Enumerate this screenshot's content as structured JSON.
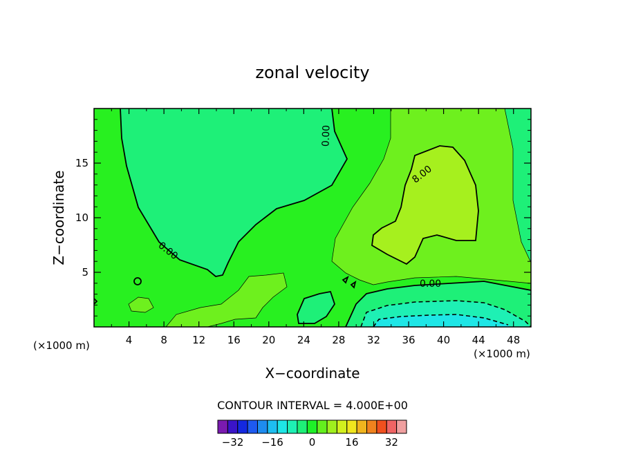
{
  "chart_data": {
    "type": "contour",
    "title": "zonal velocity",
    "xlabel": "X−coordinate",
    "ylabel": "Z−coordinate",
    "x_unit_left": "(×1000 m)",
    "x_unit_right": "(×1000 m)",
    "xlim": [
      0,
      50
    ],
    "ylim": [
      0,
      20
    ],
    "xticks": [
      4,
      8,
      12,
      16,
      20,
      24,
      28,
      32,
      36,
      40,
      44,
      48
    ],
    "yticks": [
      5,
      10,
      15
    ],
    "contour_interval_text": "CONTOUR INTERVAL = 4.000E+00",
    "contour_labels": [
      {
        "text": "0.00",
        "x": 26.5,
        "z": 17.5
      },
      {
        "text": "0.00",
        "x": 8.5,
        "z": 7.0
      },
      {
        "text": "8.00",
        "x": 37.5,
        "z": 14.0
      },
      {
        "text": "0.00",
        "x": 38.5,
        "z": 4.0
      }
    ],
    "colorbar": {
      "levels": [
        -36,
        -32,
        -28,
        -24,
        -20,
        -16,
        -12,
        -8,
        -4,
        0,
        4,
        8,
        12,
        16,
        20,
        24,
        28,
        32,
        36
      ],
      "tick_labels": [
        "−32",
        "−16",
        "0",
        "16",
        "32"
      ],
      "tick_values": [
        -32,
        -16,
        0,
        16,
        32
      ],
      "colors": [
        "#7a1ab0",
        "#3a14c8",
        "#1428e0",
        "#1e5af0",
        "#1e8cf0",
        "#1ebef0",
        "#1ee6e6",
        "#1ef0b4",
        "#1ef078",
        "#1ef028",
        "#64f01e",
        "#a0f01e",
        "#d2f01e",
        "#f0e61e",
        "#f0b41e",
        "#f0821e",
        "#f0501e",
        "#f06464",
        "#f0a0a0"
      ]
    },
    "fills": {
      "neg": "#1ef078",
      "zero": "#28f020",
      "pos4": "#6ef01e",
      "pos8": "#a6f01e",
      "neg8": "#1ef0b4",
      "neg12": "#1ee6e6"
    }
  }
}
